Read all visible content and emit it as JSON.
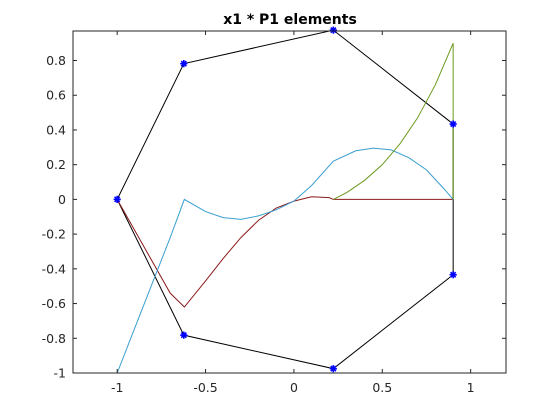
{
  "chart_data": {
    "type": "line",
    "title": "x1 * P1 elements",
    "xlabel": "",
    "ylabel": "",
    "xlim": [
      -1.25,
      1.2
    ],
    "ylim": [
      -1,
      0.97
    ],
    "grid": false,
    "legend": "none",
    "x_ticks": [
      -1,
      -0.5,
      0,
      0.5,
      1
    ],
    "x_tick_labels": [
      "-1",
      "-0.5",
      "0",
      "0.5",
      "1"
    ],
    "y_ticks": [
      -1,
      -0.8,
      -0.6,
      -0.4,
      -0.2,
      0,
      0.2,
      0.4,
      0.6,
      0.8
    ],
    "y_tick_labels": [
      "-1",
      "-0.8",
      "-0.6",
      "-0.4",
      "-0.2",
      "0",
      "0.2",
      "0.4",
      "0.6",
      "0.8"
    ],
    "series": [
      {
        "color": "#000000",
        "marker": "none",
        "x": [
          -1,
          -0.623,
          0.223,
          0.901,
          0.901,
          0.223,
          -0.623,
          -1
        ],
        "y": [
          0,
          0.782,
          0.975,
          0.434,
          -0.434,
          -0.975,
          -0.782,
          0
        ]
      },
      {
        "color": "#8b1a1a",
        "marker": "none",
        "x": [
          -1,
          -0.9,
          -0.8,
          -0.7,
          -0.62,
          -0.5,
          -0.4,
          -0.3,
          -0.2,
          -0.1,
          0,
          0.1,
          0.2,
          0.223,
          0.5,
          0.901
        ],
        "y": [
          0,
          -0.18,
          -0.36,
          -0.54,
          -0.62,
          -0.47,
          -0.34,
          -0.22,
          -0.12,
          -0.05,
          -0.01,
          0.015,
          0.01,
          0,
          0,
          0
        ]
      },
      {
        "color": "#3a9fcf",
        "marker": "none",
        "x": [
          -1,
          -0.9,
          -0.8,
          -0.7,
          -0.62,
          -0.5,
          -0.4,
          -0.3,
          -0.2,
          -0.1,
          0,
          0.1,
          0.223,
          0.35,
          0.45,
          0.55,
          0.65,
          0.75,
          0.85,
          0.901
        ],
        "y": [
          -1,
          -0.74,
          -0.48,
          -0.22,
          0,
          -0.07,
          -0.105,
          -0.115,
          -0.095,
          -0.06,
          -0.01,
          0.08,
          0.22,
          0.28,
          0.295,
          0.285,
          0.24,
          0.17,
          0.06,
          0
        ]
      },
      {
        "color": "#6b9a1f",
        "marker": "none",
        "x": [
          0.223,
          0.3,
          0.4,
          0.5,
          0.6,
          0.7,
          0.8,
          0.901,
          0.901
        ],
        "y": [
          0,
          0.04,
          0.11,
          0.2,
          0.32,
          0.47,
          0.66,
          0.9,
          0
        ]
      },
      {
        "color": "#0000ff",
        "marker": "asterisk",
        "line": "none",
        "x": [
          -1,
          -0.623,
          0.223,
          0.901,
          0.901,
          0.223,
          -0.623
        ],
        "y": [
          0,
          0.782,
          0.975,
          0.434,
          -0.434,
          -0.975,
          -0.782
        ]
      }
    ]
  }
}
